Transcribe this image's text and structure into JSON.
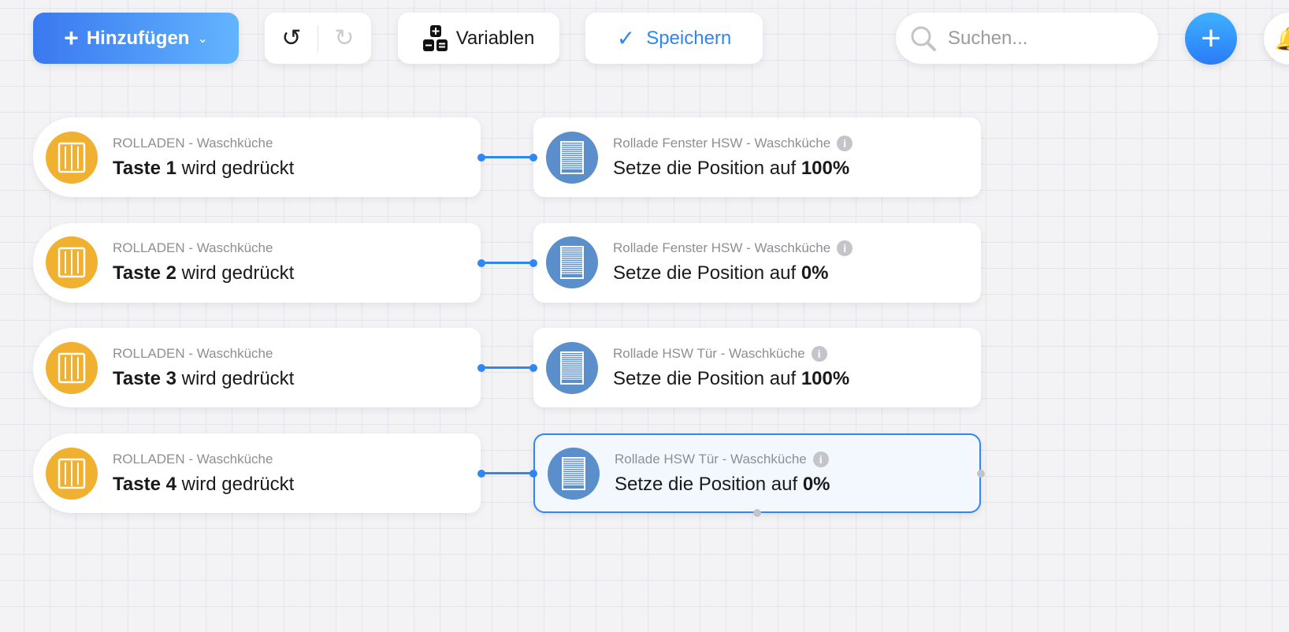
{
  "toolbar": {
    "add_label": "Hinzufügen",
    "variables_label": "Variablen",
    "save_label": "Speichern",
    "search_placeholder": "Suchen..."
  },
  "colors": {
    "accent": "#2f86f6",
    "trigger_icon": "#f0b030",
    "action_icon": "#5a8fcc"
  },
  "rules": [
    {
      "trigger": {
        "device": "ROLLADEN - Waschküche",
        "key": "Taste 1",
        "text": "wird gedrückt"
      },
      "action": {
        "device": "Rollade Fenster HSW - Waschküche",
        "text": "Setze die Position auf",
        "value": "100%"
      },
      "selected": false
    },
    {
      "trigger": {
        "device": "ROLLADEN - Waschküche",
        "key": "Taste 2",
        "text": "wird gedrückt"
      },
      "action": {
        "device": "Rollade Fenster HSW - Waschküche",
        "text": "Setze die Position auf",
        "value": "0%"
      },
      "selected": false
    },
    {
      "trigger": {
        "device": "ROLLADEN - Waschküche",
        "key": "Taste 3",
        "text": "wird gedrückt"
      },
      "action": {
        "device": "Rollade HSW Tür - Waschküche",
        "text": "Setze die Position auf",
        "value": "100%"
      },
      "selected": false
    },
    {
      "trigger": {
        "device": "ROLLADEN - Waschküche",
        "key": "Taste 4",
        "text": "wird gedrückt"
      },
      "action": {
        "device": "Rollade HSW Tür - Waschküche",
        "text": "Setze die Position auf",
        "value": "0%"
      },
      "selected": true
    }
  ]
}
